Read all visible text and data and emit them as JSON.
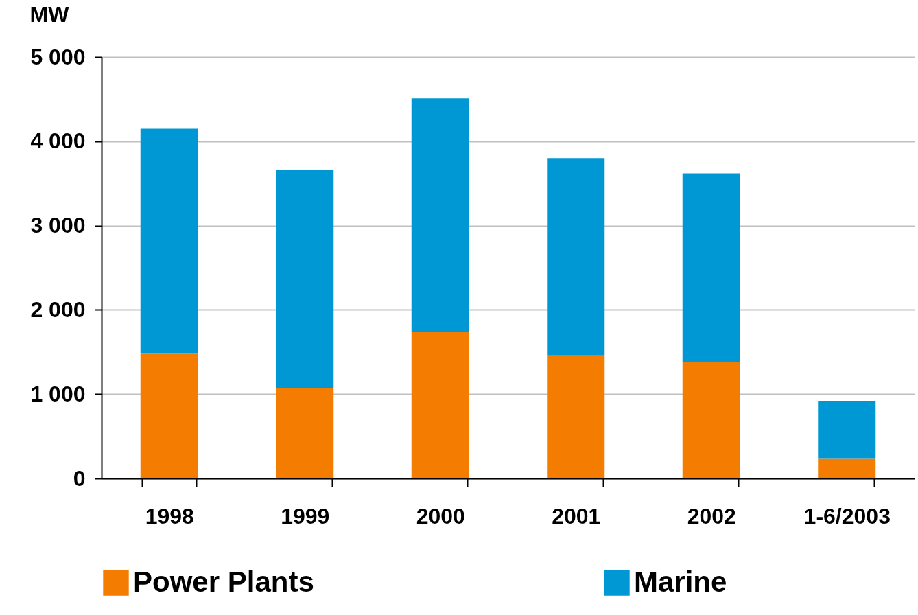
{
  "chart_data": {
    "type": "bar",
    "stacked": true,
    "ylabel": "MW",
    "categories": [
      "1998",
      "1999",
      "2000",
      "2001",
      "2002",
      "1-6/2003"
    ],
    "series": [
      {
        "name": "Power Plants",
        "color": "#f47c00",
        "values": [
          1480,
          1070,
          1740,
          1460,
          1380,
          240
        ]
      },
      {
        "name": "Marine",
        "color": "#0098d4",
        "values": [
          2670,
          2590,
          2770,
          2340,
          2240,
          680
        ]
      }
    ],
    "ylim": [
      0,
      5000
    ],
    "yticks": [
      0,
      {
        "value": 1000,
        "label": "1 000"
      },
      {
        "value": 2000,
        "label": "2 000"
      },
      {
        "value": 3000,
        "label": "3 000"
      },
      {
        "value": 4000,
        "label": "4 000"
      },
      {
        "value": 5000,
        "label": "5 000"
      }
    ],
    "grid": "y",
    "legend": "bottom"
  }
}
